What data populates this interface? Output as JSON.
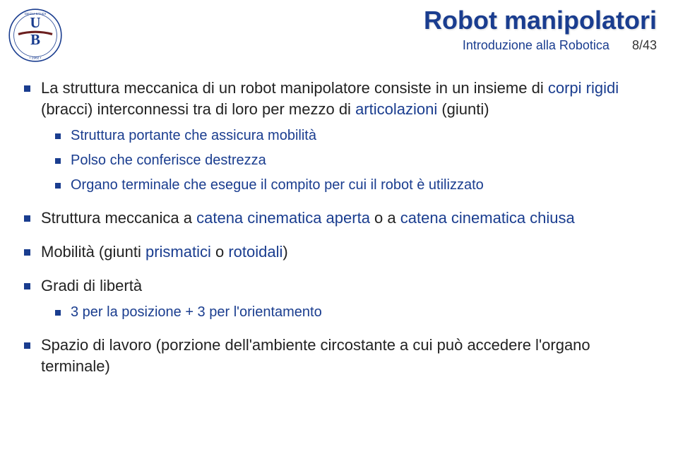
{
  "colors": {
    "accent": "#1a3d8f",
    "text": "#222222",
    "background": "#ffffff"
  },
  "header": {
    "title": "Robot manipolatori",
    "subtitle": "Introduzione alla Robotica",
    "page": "8/43"
  },
  "bullets": [
    {
      "segments": [
        {
          "text": "La struttura meccanica di un robot manipolatore consiste in un insieme di ",
          "color": "black"
        },
        {
          "text": "corpi rigidi ",
          "color": "blue"
        },
        {
          "text": "(bracci) interconnessi tra di loro per mezzo di ",
          "color": "black"
        },
        {
          "text": "articolazioni ",
          "color": "blue"
        },
        {
          "text": "(giunti)",
          "color": "black"
        }
      ],
      "children": [
        {
          "text": "Struttura portante che assicura mobilità"
        },
        {
          "text": "Polso che conferisce destrezza"
        },
        {
          "text": "Organo terminale che esegue il compito per cui il robot è utilizzato"
        }
      ]
    },
    {
      "segments": [
        {
          "text": "Struttura meccanica a ",
          "color": "black"
        },
        {
          "text": "catena cinematica aperta ",
          "color": "blue"
        },
        {
          "text": "o a ",
          "color": "black"
        },
        {
          "text": "catena cinematica chiusa",
          "color": "blue"
        }
      ]
    },
    {
      "segments": [
        {
          "text": "Mobilità (giunti ",
          "color": "black"
        },
        {
          "text": "prismatici ",
          "color": "blue"
        },
        {
          "text": "o ",
          "color": "black"
        },
        {
          "text": "rotoidali",
          "color": "blue"
        },
        {
          "text": ")",
          "color": "black"
        }
      ]
    },
    {
      "segments": [
        {
          "text": "Gradi di libertà",
          "color": "black"
        }
      ],
      "children": [
        {
          "text": "3 per la posizione + 3 per l'orientamento"
        }
      ]
    },
    {
      "segments": [
        {
          "text": "Spazio di lavoro ",
          "color": "black"
        },
        {
          "text": "(porzione dell'ambiente circostante a cui può accedere l'organo terminale)",
          "color": "black"
        }
      ]
    }
  ]
}
